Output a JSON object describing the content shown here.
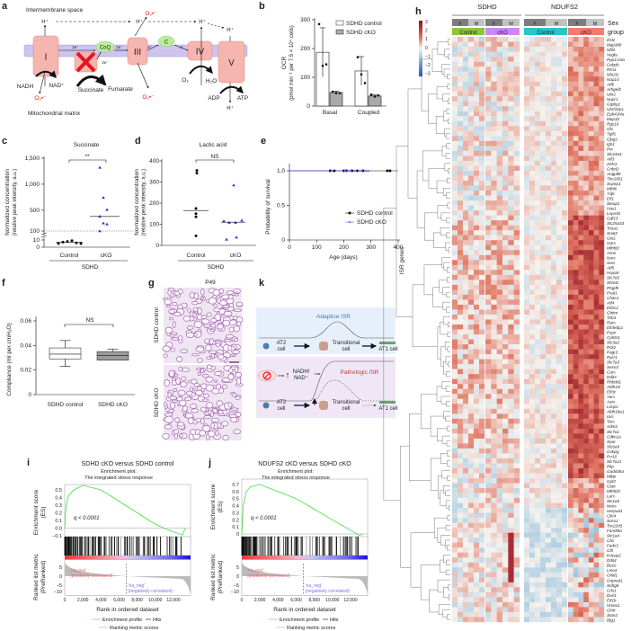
{
  "panels": {
    "a": {
      "letter": "a",
      "intermembrane": "Intermembrane space",
      "matrix": "Mitochondrial matrix",
      "complexes": [
        "I",
        "II",
        "III",
        "IV",
        "V"
      ],
      "coq": "CoQ",
      "cyt_c": "C",
      "two_e": "2e⁻",
      "e": "e⁻",
      "hplus": "H⁺",
      "superoxide": "O₂•⁻",
      "nadh": "NADH",
      "nad": "NAD⁺",
      "succinate": "Succinate",
      "fumarate": "Fumarate",
      "o2": "O₂",
      "h2o": "H₂O",
      "adp": "ADP",
      "atp": "ATP"
    },
    "b": {
      "letter": "b"
    },
    "c": {
      "letter": "c"
    },
    "d": {
      "letter": "d"
    },
    "e": {
      "letter": "e"
    },
    "f": {
      "letter": "f"
    },
    "g": {
      "letter": "g",
      "title": "P49",
      "row_labels": [
        "SDHD control",
        "SDHD cKO"
      ]
    },
    "h": {
      "letter": "h",
      "genotypes": [
        "SDHD",
        "NDUFS2"
      ],
      "row_labels": [
        "Sex",
        "group"
      ],
      "sex": [
        "F",
        "M",
        "F",
        "M",
        "F",
        "M",
        "F",
        "M"
      ],
      "groups": [
        "Control",
        "cKO",
        "Control",
        "cKO"
      ],
      "group_colors": [
        "#8cc63f",
        "#cc88f2",
        "#27c6c9",
        "#f47b6b"
      ],
      "colorbar_ticks": [
        "3",
        "2",
        "1",
        "0",
        "−1",
        "−2",
        "−3"
      ],
      "ylabel": "ISR genes",
      "genes": [
        "Ifrd1",
        "Map3k8",
        "Nfil3",
        "Vegfa",
        "Ppp1r15a",
        "Cebpb",
        "Pim1",
        "Nfe2l1",
        "Nop14",
        "Atf6",
        "Arhgef2",
        "Ubr2",
        "Nupr1",
        "Gtpbp2",
        "Uhrf1bp1",
        "Epb41l4a",
        "Map1b",
        "Rgs16",
        "Gls",
        "Tgif1",
        "Clpg1",
        "Igh1",
        "Pvr",
        "Slc24a4",
        "Atf3",
        "Znfx1",
        "Cnbd2",
        "Angptl8",
        "Tbc1d31",
        "Scpep1",
        "Mthfs",
        "Ydjc",
        "Eif1",
        "Steap1",
        "Hax1",
        "Leprel1",
        "Gdf15",
        "Slc25a33",
        "Tcea1",
        "Soat2",
        "Got1",
        "Gars",
        "Mthfd2",
        "Asns",
        "Nars",
        "Sars",
        "Atf5",
        "Hspa9",
        "Slc7a5",
        "Shmt2",
        "Phgdh",
        "Psat1",
        "Chac1",
        "Atf4",
        "Eif2s2",
        "Ghitm",
        "Trib3",
        "Rars",
        "Eif4ebp1",
        "Pspn",
        "Cyb5r1",
        "Slc3a2",
        "Pck2",
        "Pagr3",
        "Pycr1",
        "Slc7a3",
        "Sesn2",
        "Cars",
        "Ddit3",
        "Rhbdd1",
        "Aldh1l2",
        "Eif3c",
        "Yars",
        "Aars",
        "Lonp1",
        "Aldh18a1",
        "Iars",
        "Tars",
        "Adm2",
        "Slc7a1",
        "Cdkn1a",
        "Xpot",
        "Slc6a9",
        "Cebpg",
        "Prr10",
        "Slc7a11",
        "Pkp",
        "Gadd45a",
        "Mtbp",
        "Gpt2",
        "Clart",
        "Mthfd1l",
        "Lars",
        "Slc1a5",
        "Wars",
        "Herpud1",
        "Clic4",
        "Socs2",
        "Tsc22d3",
        "Fam89a",
        "Slc1a4",
        "Cbs",
        "Fads3",
        "Cth",
        "Krtcap2",
        "Ddit4",
        "Bex2",
        "Lmo4",
        "Oxld1",
        "Gnpnat1",
        "Snhg8",
        "Crls1",
        "Derl1",
        "Eif1b",
        "Hmox1",
        "Cln8",
        "Stan2",
        "Btg1"
      ]
    },
    "i": {
      "letter": "i",
      "title": "SDHD cKO versus SDHD control"
    },
    "j": {
      "letter": "j",
      "title": "NDUFS2 cKO versus SDHD cKO"
    },
    "gsea_common": {
      "subtitle1": "Enrichment plot:",
      "subtitle2": "The integrated stress response",
      "ylabel_es1": "Enrichment score",
      "ylabel_es2": "(ES)",
      "ylabel_rank1": "Ranked list metric",
      "ylabel_rank2": "(PreRanked)",
      "q": "q < 0.0001",
      "xlabel": "Rank in ordered dataset",
      "na_pos1": "'na_pos'",
      "na_pos2": "(positively correlated)",
      "na_neg1": "'na_neg'",
      "na_neg2": "(negatively correlated)",
      "legend_profile": "Enrichment profile",
      "legend_hits": "Hits",
      "legend_metric": "Ranking metric scores",
      "xticks": [
        "0",
        "2,000",
        "4,000",
        "6,000",
        "8,000",
        "10,000",
        "12,000"
      ],
      "rank_ticks": [
        "5",
        "0",
        "−5",
        "−10"
      ]
    },
    "k": {
      "letter": "k",
      "adaptive": "Adaptive ISR",
      "pathologic": "Pathologic ISR",
      "at2": "AT2",
      "cell": "cell",
      "transitional": "Transitional",
      "at1": "AT1 cell",
      "nadh_ratio1": "NADH/",
      "nadh_ratio2": "NAD⁺"
    }
  },
  "chart_data": [
    {
      "id": "b",
      "type": "bar",
      "categories": [
        "Basal",
        "Coupled"
      ],
      "ylabel1": "OCR",
      "ylabel2": "(pmol min⁻¹ per 7.5 × 10⁴ cells)",
      "yticks": [
        "0",
        "100",
        "200",
        "300"
      ],
      "ylim": [
        0,
        300
      ],
      "legend": [
        "SDHD control",
        "SDHD cKO"
      ],
      "series": [
        {
          "name": "SDHD control",
          "values": [
            187,
            122
          ],
          "err": [
            85,
            50
          ],
          "points": [
            [
              285,
              140,
              145
            ],
            [
              170,
              110,
              80
            ]
          ]
        },
        {
          "name": "SDHD cKO",
          "values": [
            47,
            35
          ],
          "err": [
            5,
            4
          ],
          "points": [
            [
              50,
              45,
              45
            ],
            [
              40,
              33,
              37
            ]
          ]
        }
      ]
    },
    {
      "id": "c",
      "type": "scatter",
      "title": "Succinate",
      "ylabel1": "Normalized concentration",
      "ylabel2": "(relative peak intensity, a.u.)",
      "categories": [
        "Control",
        "cKO"
      ],
      "group_label": "SDHD",
      "significance": "**",
      "yticks": [
        "0",
        "10",
        "100",
        "500",
        "1,000",
        "1,500"
      ],
      "series": [
        {
          "name": "Control",
          "values": [
            5,
            7,
            8,
            9,
            6,
            5
          ],
          "median": 7
        },
        {
          "name": "cKO",
          "values": [
            1320,
            740,
            510,
            380,
            250,
            230,
            100
          ],
          "median": 380
        }
      ]
    },
    {
      "id": "d",
      "type": "scatter",
      "title": "Lactic acid",
      "ylabel1": "Normalized concentration",
      "ylabel2": "(relative peak intensity, a.u.)",
      "categories": [
        "Control",
        "cKO"
      ],
      "group_label": "SDHD",
      "significance": "NS",
      "yticks": [
        "0",
        "100",
        "200",
        "300",
        "400"
      ],
      "ylim": [
        0,
        400
      ],
      "series": [
        {
          "name": "Control",
          "values": [
            355,
            342,
            175,
            150,
            135,
            45
          ],
          "median": 165
        },
        {
          "name": "cKO",
          "values": [
            285,
            115,
            108,
            108,
            118,
            28,
            38
          ],
          "median": 110
        }
      ]
    },
    {
      "id": "e",
      "type": "line",
      "ylabel": "Probability of survival",
      "xlabel": "Age (days)",
      "xticks": [
        "0",
        "100",
        "200",
        "300",
        "400"
      ],
      "yticks": [
        "0",
        "0.5",
        "1.0"
      ],
      "xlim": [
        0,
        400
      ],
      "ylim": [
        0,
        1
      ],
      "series": [
        {
          "name": "SDHD control",
          "censored": [
            150,
            165,
            200,
            210,
            230,
            250,
            270,
            360,
            370
          ],
          "survival": 1.0
        },
        {
          "name": "SDHD cKO",
          "censored": [
            155,
            205,
            215,
            225,
            240,
            255,
            265,
            280,
            290
          ],
          "survival": 1.0
        }
      ]
    },
    {
      "id": "f",
      "type": "box",
      "ylabel": "Compliance (ml per cmH₂O)",
      "categories": [
        "SDHD control",
        "SDHD cKO"
      ],
      "significance": "NS",
      "yticks": [
        "0",
        "0.02",
        "0.04",
        "0.06"
      ],
      "ylim": [
        0,
        0.065
      ],
      "series": [
        {
          "name": "SDHD control",
          "min": 0.023,
          "q1": 0.029,
          "median": 0.033,
          "q3": 0.038,
          "max": 0.044
        },
        {
          "name": "SDHD cKO",
          "min": 0.028,
          "q1": 0.028,
          "median": 0.032,
          "q3": 0.035,
          "max": 0.037
        }
      ]
    },
    {
      "id": "i",
      "type": "line",
      "es_yticks": [
        "0.5",
        "0.4",
        "0.3",
        "0.2",
        "0.1",
        "0.0",
        "−0.1"
      ],
      "es_range": [
        -0.1,
        0.5
      ],
      "es_curve": [
        [
          0,
          0
        ],
        [
          150,
          0.3
        ],
        [
          400,
          0.42
        ],
        [
          1000,
          0.5
        ],
        [
          2000,
          0.56
        ],
        [
          4000,
          0.5
        ],
        [
          6000,
          0.35
        ],
        [
          8000,
          0.2
        ],
        [
          10000,
          0.05
        ],
        [
          11500,
          -0.03
        ],
        [
          13000,
          -0.09
        ],
        [
          13300,
          0
        ]
      ]
    },
    {
      "id": "j",
      "type": "line",
      "es_yticks": [
        "0.7",
        "0.6",
        "0.5",
        "0.4",
        "0.3",
        "0.2",
        "0.1",
        "0"
      ],
      "es_range": [
        0,
        0.7
      ],
      "es_curve": [
        [
          0,
          0
        ],
        [
          150,
          0.4
        ],
        [
          500,
          0.6
        ],
        [
          1000,
          0.67
        ],
        [
          2000,
          0.7
        ],
        [
          4000,
          0.6
        ],
        [
          6000,
          0.5
        ],
        [
          8000,
          0.35
        ],
        [
          10000,
          0.2
        ],
        [
          12000,
          0.05
        ],
        [
          13000,
          -0.02
        ],
        [
          13300,
          0
        ]
      ]
    }
  ]
}
